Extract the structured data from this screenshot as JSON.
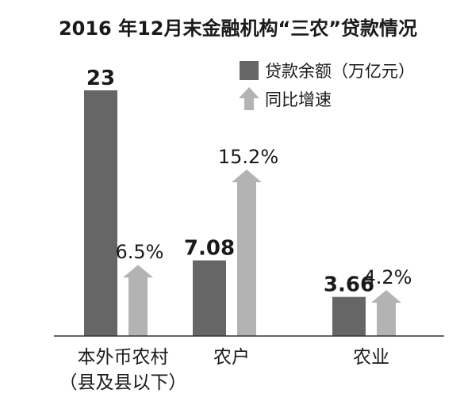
{
  "chart_data": {
    "type": "bar",
    "title": "2016 年12月末金融机构“三农”贷款情况",
    "categories": [
      [
        "本外币农村",
        "（县及县以下）"
      ],
      [
        "农户"
      ],
      [
        "农业"
      ]
    ],
    "series": [
      {
        "name": "贷款余额（万亿元）",
        "values": [
          23,
          7.08,
          3.66
        ],
        "labels": [
          "23",
          "7.08",
          "3.66"
        ],
        "color": "#666666",
        "shape": "bar"
      },
      {
        "name": "同比增速",
        "values": [
          6.5,
          15.2,
          4.2
        ],
        "labels": [
          "6.5%",
          "15.2%",
          "4.2%"
        ],
        "color": "#b3b3b3",
        "shape": "arrow"
      }
    ],
    "legend_position": "top-right",
    "grid": false
  }
}
